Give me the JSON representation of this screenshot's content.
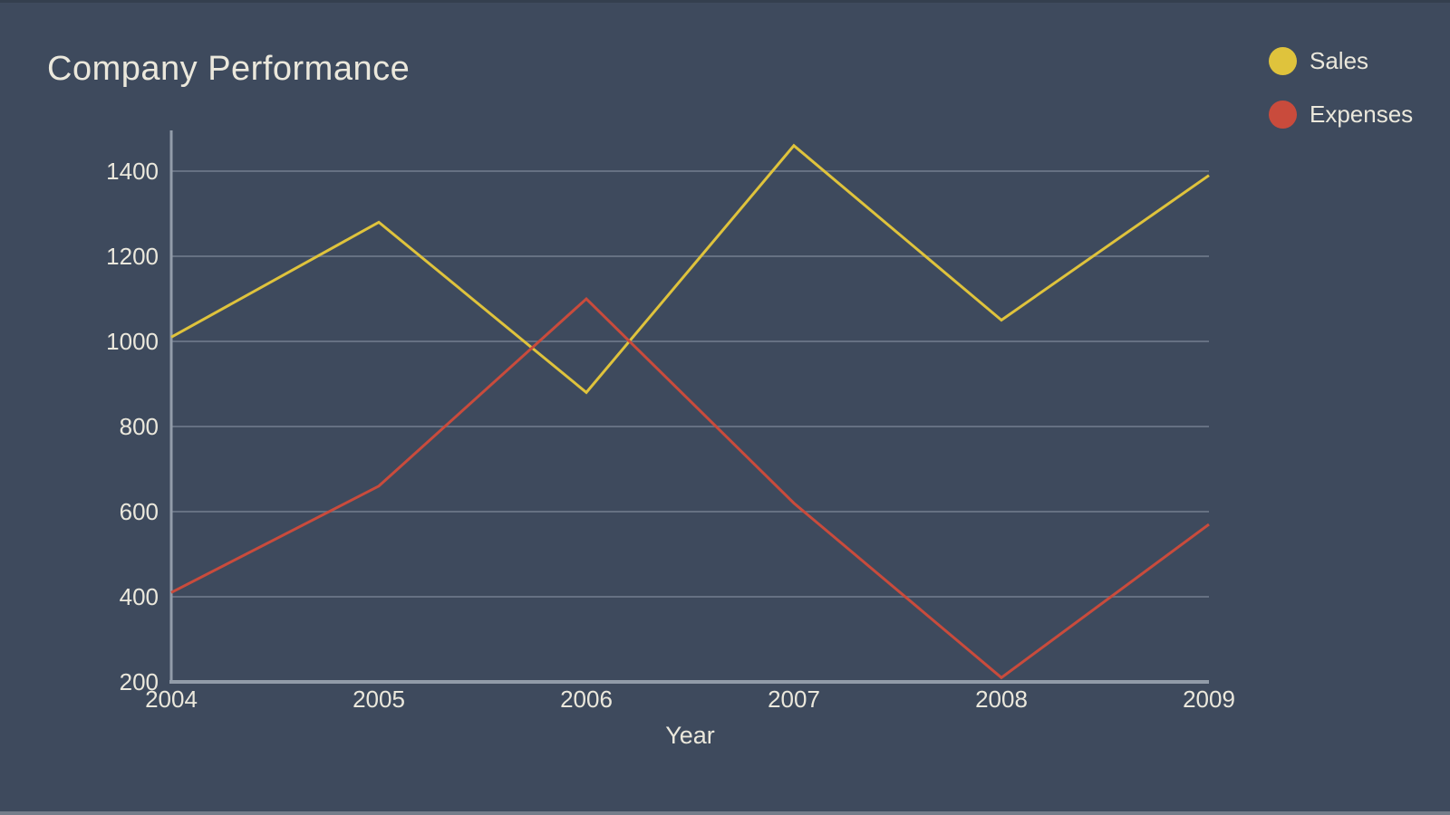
{
  "chart_data": {
    "type": "line",
    "title": "Company Performance",
    "xlabel": "Year",
    "x": [
      "2004",
      "2005",
      "2006",
      "2007",
      "2008",
      "2009"
    ],
    "series": [
      {
        "name": "Sales",
        "color": "#dfc33c",
        "values": [
          1010,
          1280,
          880,
          1460,
          1050,
          1390
        ]
      },
      {
        "name": "Expenses",
        "color": "#c94b3c",
        "values": [
          410,
          660,
          1100,
          620,
          210,
          570
        ]
      }
    ],
    "ylim": [
      200,
      1400
    ],
    "yticks": [
      200,
      400,
      600,
      800,
      1000,
      1200,
      1400
    ],
    "grid": true,
    "legend_position": "top-right",
    "colors": {
      "background": "#3e4a5d",
      "text": "#ebe8dc",
      "grid": "rgba(196,206,219,0.30)",
      "axis": "#929ca9"
    }
  }
}
